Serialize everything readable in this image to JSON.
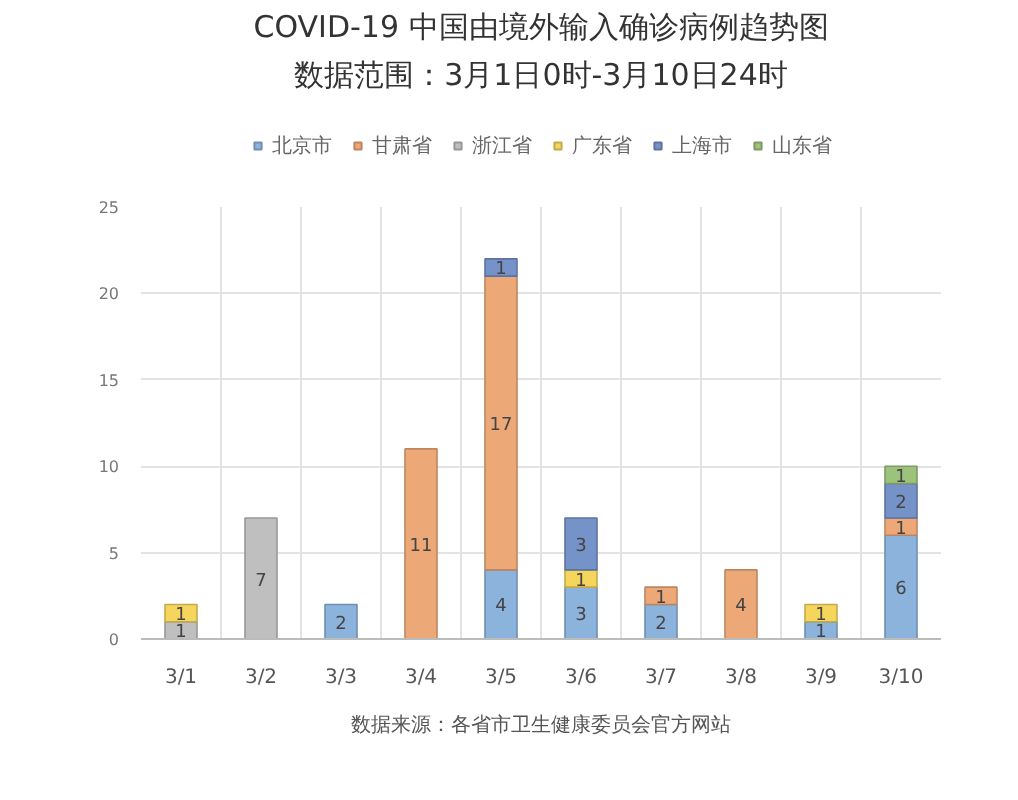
{
  "chart_data": {
    "type": "bar",
    "title": "COVID-19 中国由境外输入确诊病例趋势图",
    "subtitle": "数据范围：3月1日0时-3月10日24时",
    "annotations": [
      "数据来源：各省市卫生健康委员会官方网站"
    ],
    "categories": [
      "3/1",
      "3/2",
      "3/3",
      "3/4",
      "3/5",
      "3/6",
      "3/7",
      "3/8",
      "3/9",
      "3/10"
    ],
    "stacked": true,
    "series": [
      {
        "name": "北京市",
        "color": "#8cb3dc",
        "values": [
          null,
          null,
          2,
          null,
          4,
          3,
          2,
          null,
          1,
          6
        ]
      },
      {
        "name": "甘肃省",
        "color": "#eda878",
        "values": [
          null,
          null,
          null,
          11,
          17,
          null,
          1,
          4,
          null,
          1
        ]
      },
      {
        "name": "浙江省",
        "color": "#bfbfbf",
        "values": [
          1,
          7,
          null,
          null,
          null,
          null,
          null,
          null,
          null,
          null
        ]
      },
      {
        "name": "广东省",
        "color": "#f6d55c",
        "values": [
          1,
          null,
          null,
          null,
          null,
          1,
          null,
          null,
          1,
          null
        ]
      },
      {
        "name": "上海市",
        "color": "#7592c9",
        "values": [
          null,
          null,
          null,
          null,
          1,
          3,
          null,
          null,
          null,
          2
        ]
      },
      {
        "name": "山东省",
        "color": "#9dc27c",
        "values": [
          null,
          null,
          null,
          null,
          null,
          null,
          null,
          null,
          null,
          1
        ]
      }
    ],
    "ylim": [
      0,
      25
    ],
    "yticks": [
      0,
      5,
      10,
      15,
      20,
      25
    ],
    "grid": true,
    "legend": "top",
    "data_labels": true
  }
}
